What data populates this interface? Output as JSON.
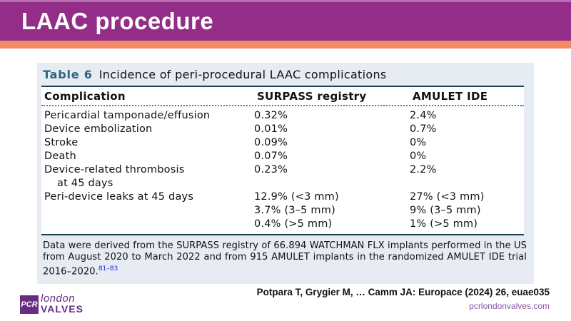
{
  "slide": {
    "title": "LAAC procedure"
  },
  "table": {
    "caption": {
      "label": "Table 6",
      "text": "Incidence of peri-procedural LAAC complications"
    },
    "columns": [
      "Complication",
      "SURPASS registry",
      "AMULET IDE"
    ],
    "rows": [
      {
        "complication": [
          "Pericardial tamponade/effusion"
        ],
        "surpass": [
          "0.32%"
        ],
        "amulet": [
          "2.4%"
        ]
      },
      {
        "complication": [
          "Device embolization"
        ],
        "surpass": [
          "0.01%"
        ],
        "amulet": [
          "0.7%"
        ]
      },
      {
        "complication": [
          "Stroke"
        ],
        "surpass": [
          "0.09%"
        ],
        "amulet": [
          "0%"
        ]
      },
      {
        "complication": [
          "Death"
        ],
        "surpass": [
          "0.07%"
        ],
        "amulet": [
          "0%"
        ]
      },
      {
        "complication": [
          "Device-related thrombosis",
          "at 45 days"
        ],
        "surpass": [
          "0.23%"
        ],
        "amulet": [
          "2.2%"
        ]
      },
      {
        "complication": [
          "Peri-device leaks at 45 days"
        ],
        "surpass": [
          "12.9% (<3 mm)",
          "3.7% (3–5 mm)",
          "0.4% (>5 mm)"
        ],
        "amulet": [
          "27% (<3 mm)",
          "9% (3–5 mm)",
          "1% (>5 mm)"
        ]
      }
    ],
    "footnote": {
      "text": "Data were derived from the SURPASS registry of 66.894 WATCHMAN FLX implants performed in the US from August 2020 to March 2022 and from 915 AMULET implants in the randomized AMULET IDE trial 2016–2020.",
      "reference_superscript": "81–83"
    }
  },
  "footer": {
    "citation": "Potpara T, Grygier M, … Camm JA: Europace (2024) 26, euae035",
    "website": "pcrlondonvalves.com",
    "logo": {
      "badge": "PCR",
      "line1": "london",
      "line2": "VALVES"
    }
  },
  "colors": {
    "header_purple": "#932d87",
    "header_top_strip": "#b470ae",
    "accent_orange": "#f48a66",
    "card_background": "#e6ecf2",
    "caption_label_blue": "#2d6484",
    "rule_dark": "#1f4052",
    "dotted_blue": "#4d7d9e",
    "reference_blue": "#2323d6",
    "brand_purple": "#662d82",
    "website_purple": "#8d56a4"
  }
}
